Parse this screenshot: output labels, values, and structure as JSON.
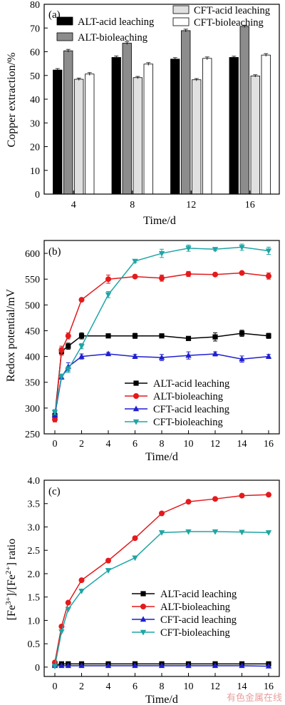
{
  "chart_data": [
    {
      "type": "bar",
      "panel_label": "(a)",
      "xlabel": "Time/d",
      "ylabel": "Copper extraction/%",
      "categories": [
        "4",
        "8",
        "12",
        "16"
      ],
      "ylim": [
        0,
        80
      ],
      "yticks": [
        "0",
        "10",
        "20",
        "30",
        "40",
        "50",
        "60",
        "70",
        "80"
      ],
      "legend_position": "top",
      "series": [
        {
          "name": "ALT-acid leaching",
          "color": "#000000",
          "values": [
            52.3,
            57.6,
            56.9,
            57.6
          ],
          "errors": [
            0.6,
            0.6,
            0.6,
            0.5
          ]
        },
        {
          "name": "ALT-bioleaching",
          "color": "#8c8c8c",
          "values": [
            60.4,
            63.6,
            68.9,
            70.7
          ],
          "errors": [
            0.6,
            0.6,
            0.6,
            0.5
          ]
        },
        {
          "name": "CFT-acid leaching",
          "color": "#e0e0e0",
          "values": [
            48.4,
            49.1,
            48.2,
            49.8
          ],
          "errors": [
            0.5,
            0.5,
            0.5,
            0.5
          ]
        },
        {
          "name": "CFT-bioleaching",
          "color": "#ffffff",
          "values": [
            50.6,
            54.8,
            57.2,
            58.6
          ],
          "errors": [
            0.6,
            0.6,
            0.6,
            0.6
          ]
        }
      ]
    },
    {
      "type": "line",
      "panel_label": "(b)",
      "xlabel": "Time/d",
      "ylabel": "Redox potential/mV",
      "x": [
        0,
        0.5,
        1,
        2,
        4,
        6,
        8,
        10,
        12,
        14,
        16
      ],
      "xlim": [
        -0.8,
        16.8
      ],
      "ylim": [
        250,
        625
      ],
      "xticks": [
        "0",
        "2",
        "4",
        "6",
        "8",
        "10",
        "12",
        "14",
        "16"
      ],
      "yticks": [
        "250",
        "300",
        "350",
        "400",
        "450",
        "500",
        "550",
        "600"
      ],
      "legend_position": "bottom-right",
      "series": [
        {
          "name": "ALT-acid leaching",
          "color": "#000000",
          "marker": "square",
          "values": [
            285,
            410,
            420,
            440,
            440,
            440,
            440,
            435,
            438,
            445,
            440
          ],
          "errors": [
            5,
            7,
            6,
            6,
            3,
            5,
            3,
            3,
            8,
            6,
            5
          ]
        },
        {
          "name": "ALT-bioleaching",
          "color": "#e41a1c",
          "marker": "circle",
          "values": [
            278,
            412,
            440,
            510,
            550,
            555,
            552,
            560,
            559,
            562,
            556
          ],
          "errors": [
            5,
            8,
            6,
            3,
            8,
            3,
            6,
            5,
            3,
            3,
            6
          ]
        },
        {
          "name": "CFT-acid leaching",
          "color": "#1f1fcf",
          "marker": "triangle-up",
          "values": [
            287,
            360,
            380,
            400,
            405,
            400,
            398,
            402,
            405,
            395,
            400
          ],
          "errors": [
            5,
            4,
            8,
            5,
            3,
            4,
            6,
            7,
            4,
            6,
            4
          ]
        },
        {
          "name": "CFT-bioleaching",
          "color": "#1fa5a5",
          "marker": "triangle-down",
          "values": [
            292,
            362,
            375,
            420,
            520,
            585,
            600,
            610,
            608,
            612,
            605
          ],
          "errors": [
            5,
            4,
            6,
            5,
            6,
            3,
            8,
            6,
            3,
            6,
            7
          ]
        }
      ]
    },
    {
      "type": "line",
      "panel_label": "(c)",
      "xlabel": "Time/d",
      "ylabel": "[Fe3+]/[Fe2+] ratio",
      "ylabel_parts": [
        "[Fe",
        "3+",
        "]/[Fe",
        "2+",
        "] ratio"
      ],
      "x": [
        0,
        0.5,
        1,
        2,
        4,
        6,
        8,
        10,
        12,
        14,
        16
      ],
      "xlim": [
        -0.8,
        16.8
      ],
      "ylim": [
        -0.2,
        4.0
      ],
      "xticks": [
        "0",
        "2",
        "4",
        "6",
        "8",
        "10",
        "12",
        "14",
        "16"
      ],
      "yticks": [
        "0",
        "0.5",
        "1.0",
        "1.5",
        "2.0",
        "2.5",
        "3.0",
        "3.5",
        "4.0"
      ],
      "legend_position": "bottom-right",
      "series": [
        {
          "name": "ALT-acid leaching",
          "color": "#000000",
          "marker": "square",
          "values": [
            0.05,
            0.07,
            0.07,
            0.07,
            0.07,
            0.07,
            0.07,
            0.07,
            0.07,
            0.07,
            0.07
          ]
        },
        {
          "name": "ALT-bioleaching",
          "color": "#e41a1c",
          "marker": "circle",
          "values": [
            0.1,
            0.87,
            1.38,
            1.86,
            2.28,
            2.76,
            3.29,
            3.54,
            3.6,
            3.67,
            3.69
          ]
        },
        {
          "name": "CFT-acid leaching",
          "color": "#1f1fcf",
          "marker": "triangle-up",
          "values": [
            0.03,
            0.03,
            0.03,
            0.03,
            0.03,
            0.03,
            0.03,
            0.03,
            0.03,
            0.03,
            0.02
          ]
        },
        {
          "name": "CFT-bioleaching",
          "color": "#1fa5a5",
          "marker": "triangle-down",
          "values": [
            0.02,
            0.76,
            1.24,
            1.63,
            2.07,
            2.34,
            2.88,
            2.9,
            2.9,
            2.89,
            2.88
          ]
        }
      ]
    }
  ],
  "watermark": "有色金属在线"
}
